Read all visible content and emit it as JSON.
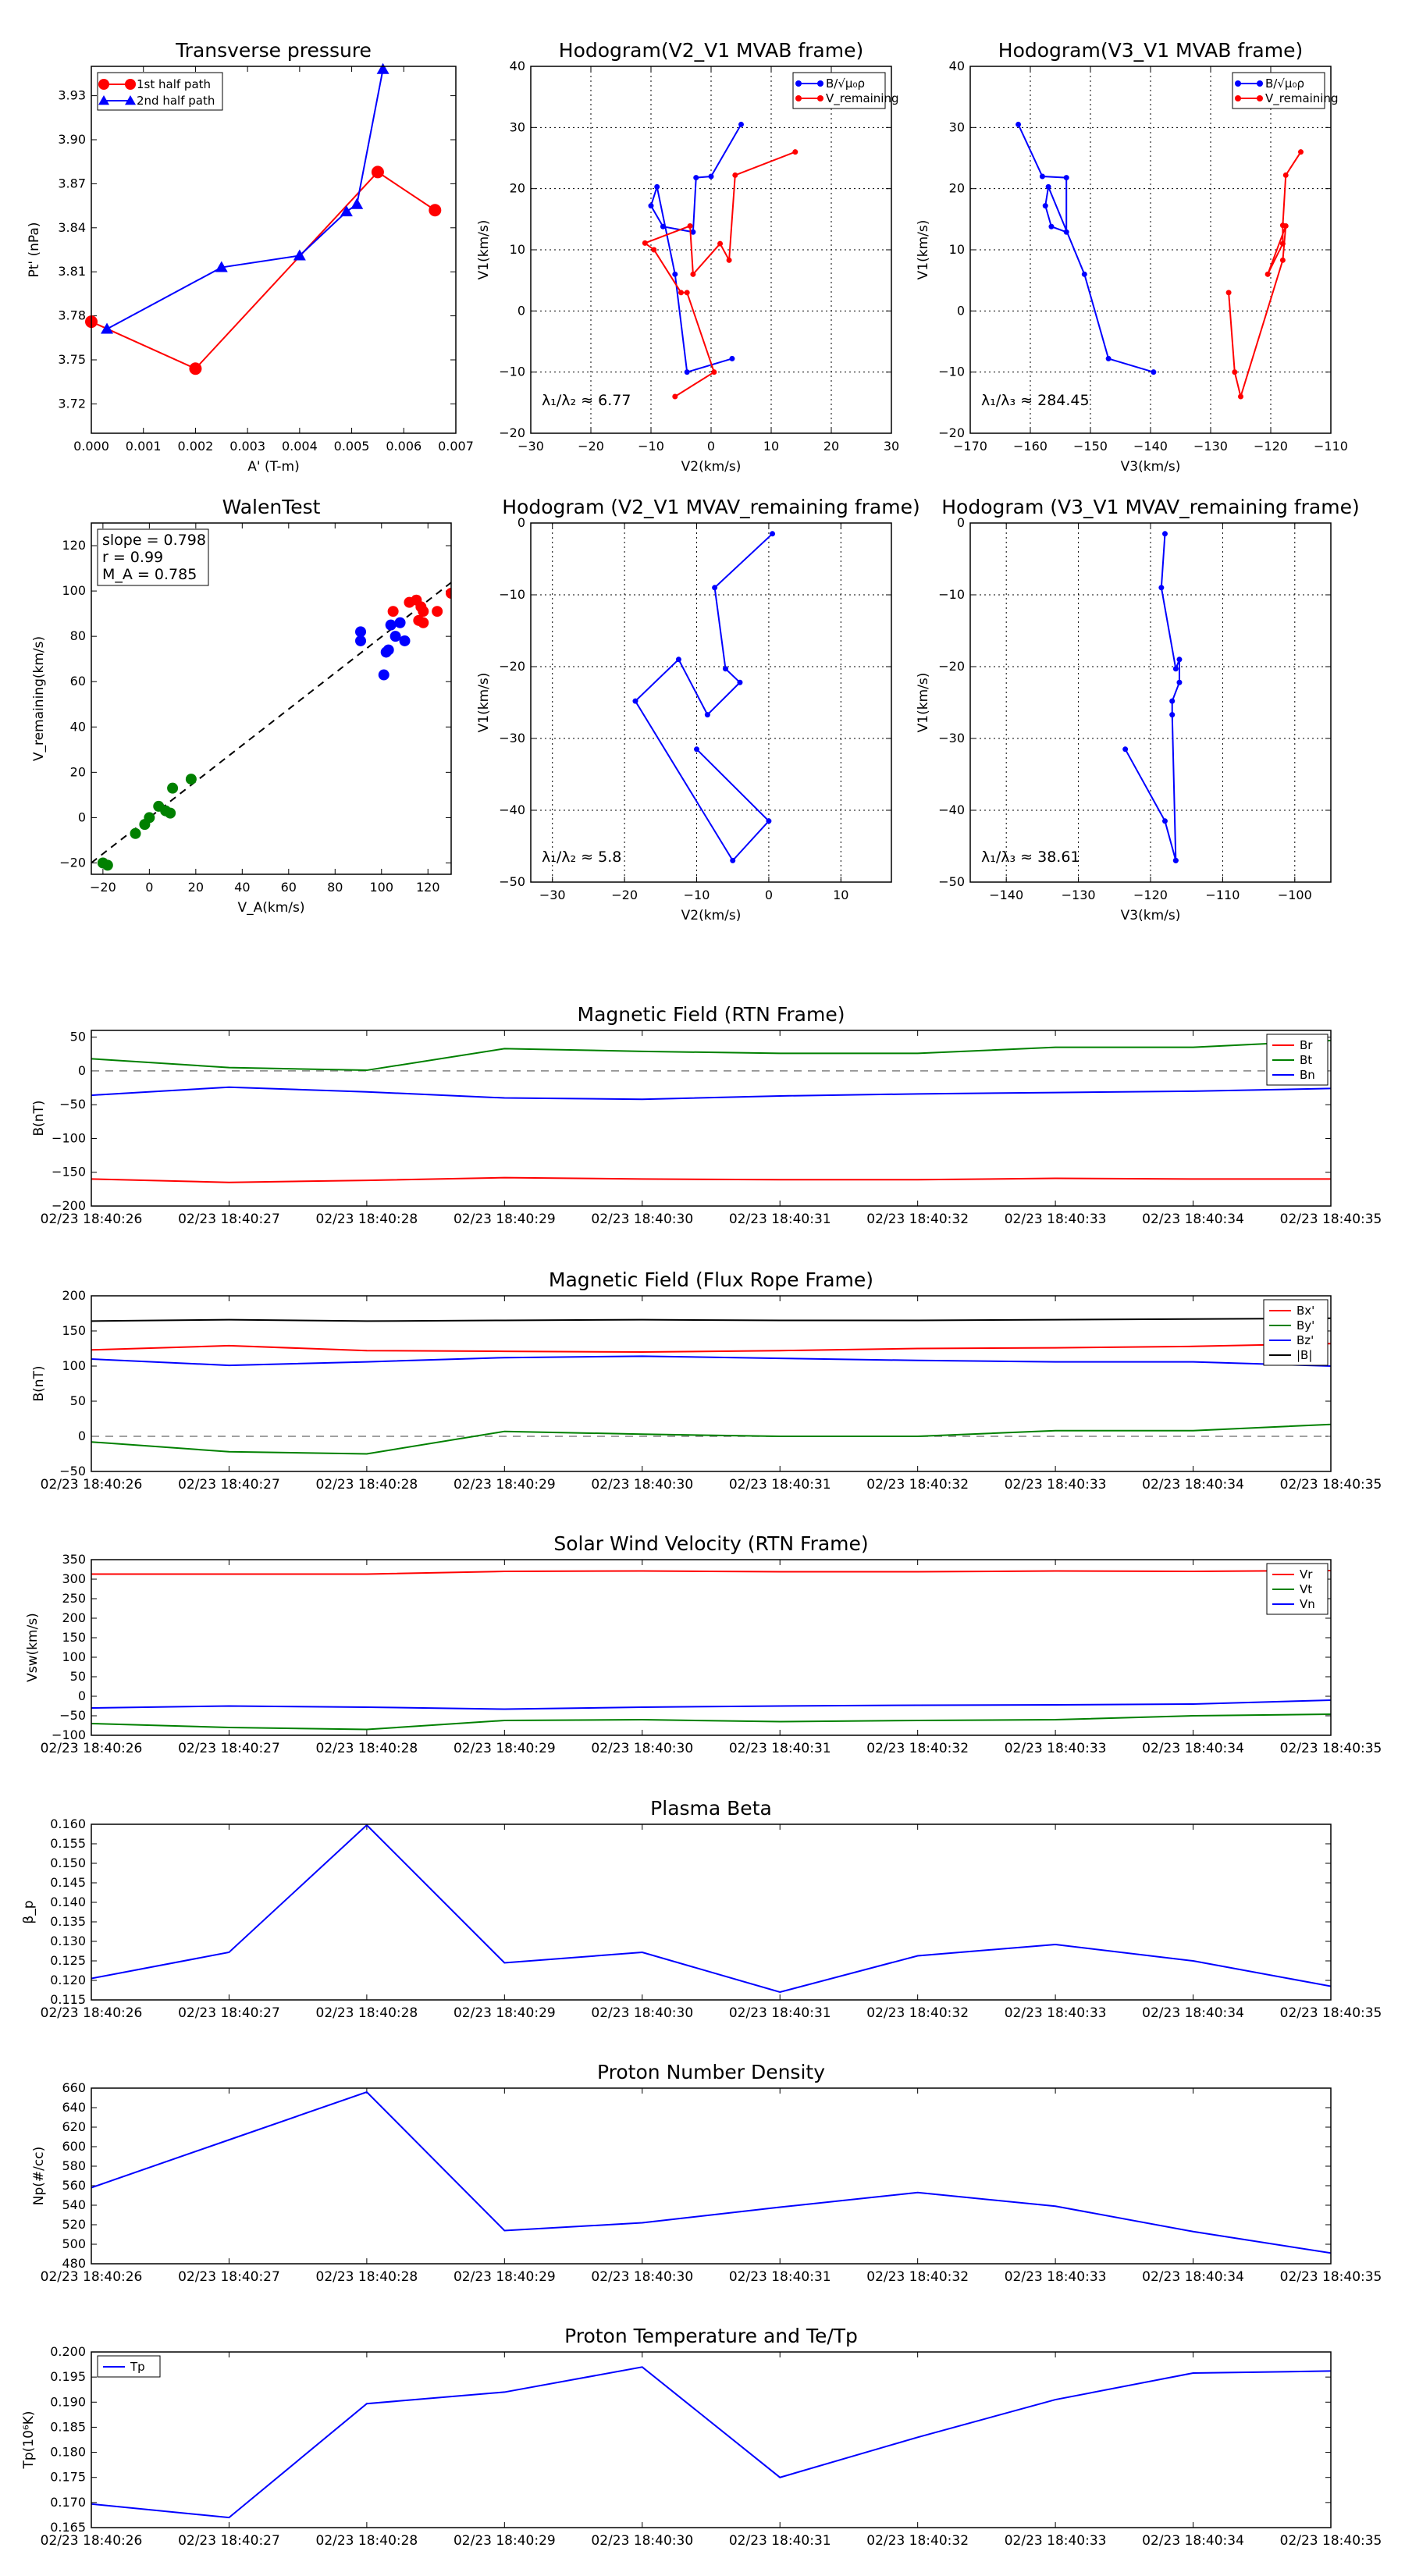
{
  "colors": {
    "red": "#ff0000",
    "green": "#008000",
    "blue": "#0000ff",
    "black": "#000000",
    "grid": "#000000",
    "dash": "#808080"
  },
  "panels": {
    "transverse": {
      "title": "Transverse pressure",
      "xlabel": "A' (T-m)",
      "ylabel": "Pt' (nPa)",
      "xlim": [
        0,
        0.007
      ],
      "ylim": [
        3.7,
        3.95
      ],
      "xticks": [
        "0.000",
        "0.001",
        "0.002",
        "0.003",
        "0.004",
        "0.005",
        "0.006",
        "0.007"
      ],
      "yticks": [
        "3.72",
        "3.75",
        "3.78",
        "3.81",
        "3.84",
        "3.87",
        "3.90",
        "3.93"
      ]
    },
    "hodo1": {
      "title": "Hodogram(V2_V1 MVAB frame)",
      "xlabel": "V2(km/s)",
      "ylabel": "V1(km/s)",
      "xticks": [
        "−30",
        "−20",
        "−10",
        "0",
        "10",
        "20",
        "30"
      ],
      "yticks": [
        "−20",
        "−10",
        "0",
        "10",
        "20",
        "30",
        "40"
      ],
      "legend": [
        "B/√μ₀ρ",
        "V_remaining"
      ],
      "annotation": "λ₁/λ₂ ≈ 6.77"
    },
    "hodo2": {
      "title": "Hodogram(V3_V1 MVAB frame)",
      "xlabel": "V3(km/s)",
      "ylabel": "V1(km/s)",
      "xticks": [
        "−170",
        "−160",
        "−150",
        "−140",
        "−130",
        "−120",
        "−110"
      ],
      "yticks": [
        "−20",
        "−10",
        "0",
        "10",
        "20",
        "30",
        "40"
      ],
      "legend": [
        "B/√μ₀ρ",
        "V_remaining"
      ],
      "annotation": "λ₁/λ₃ ≈ 284.45"
    },
    "walen": {
      "title": "WalenTest",
      "xlabel": "V_A(km/s)",
      "ylabel": "V_remaining(km/s)",
      "xticks": [
        "−20",
        "0",
        "20",
        "40",
        "60",
        "80",
        "100",
        "120"
      ],
      "yticks": [
        "−20",
        "0",
        "20",
        "40",
        "60",
        "80",
        "100",
        "120"
      ],
      "stats": [
        "slope = 0.798",
        "r = 0.99",
        "M_A = 0.785"
      ]
    },
    "hodo3": {
      "title": "Hodogram (V2_V1 MVAV_remaining frame)",
      "xlabel": "V2(km/s)",
      "ylabel": "V1(km/s)",
      "xticks": [
        "−30",
        "−20",
        "−10",
        "0",
        "10"
      ],
      "yticks": [
        "−50",
        "−40",
        "−30",
        "−20",
        "−10",
        "0"
      ],
      "annotation": "λ₁/λ₂ ≈ 5.8"
    },
    "hodo4": {
      "title": "Hodogram (V3_V1 MVAV_remaining frame)",
      "xlabel": "V3(km/s)",
      "ylabel": "V1(km/s)",
      "xticks": [
        "−140",
        "−130",
        "−120",
        "−110",
        "−100"
      ],
      "yticks": [
        "−50",
        "−40",
        "−30",
        "−20",
        "−10",
        "0"
      ],
      "annotation": "λ₁/λ₃ ≈ 38.61"
    },
    "time_ticks": [
      "02/23 18:40:26",
      "02/23 18:40:27",
      "02/23 18:40:28",
      "02/23 18:40:29",
      "02/23 18:40:30",
      "02/23 18:40:31",
      "02/23 18:40:32",
      "02/23 18:40:33",
      "02/23 18:40:34",
      "02/23 18:40:35"
    ],
    "ts1": {
      "title": "Magnetic Field (RTN Frame)",
      "ylabel": "B(nT)",
      "yticks": [
        "−200",
        "−150",
        "−100",
        "−50",
        "0",
        "50"
      ],
      "legend": [
        "Br",
        "Bt",
        "Bn"
      ]
    },
    "ts2": {
      "title": "Magnetic Field (Flux Rope Frame)",
      "ylabel": "B(nT)",
      "yticks": [
        "−50",
        "0",
        "50",
        "100",
        "150",
        "200"
      ],
      "legend": [
        "Bx'",
        "By'",
        "Bz'",
        "|B|"
      ]
    },
    "ts3": {
      "title": "Solar Wind Velocity (RTN Frame)",
      "ylabel": "Vsw(km/s)",
      "yticks": [
        "−100",
        "−50",
        "0",
        "50",
        "100",
        "150",
        "200",
        "250",
        "300",
        "350"
      ],
      "legend": [
        "Vr",
        "Vt",
        "Vn"
      ]
    },
    "ts4": {
      "title": "Plasma Beta",
      "ylabel": "β_p",
      "yticks": [
        "0.115",
        "0.120",
        "0.125",
        "0.130",
        "0.135",
        "0.140",
        "0.145",
        "0.150",
        "0.155",
        "0.160"
      ]
    },
    "ts5": {
      "title": "Proton Number Density",
      "ylabel": "Np(#/cc)",
      "yticks": [
        "480",
        "500",
        "520",
        "540",
        "560",
        "580",
        "600",
        "620",
        "640",
        "660"
      ]
    },
    "ts6": {
      "title": "Proton Temperature and Te/Tp",
      "ylabel": "Tp(10⁶K)",
      "yticks": [
        "0.165",
        "0.170",
        "0.175",
        "0.180",
        "0.185",
        "0.190",
        "0.195",
        "0.200"
      ],
      "legend": [
        "Tp"
      ]
    }
  },
  "chart_data": [
    {
      "type": "scatter",
      "title": "Transverse pressure",
      "xlabel": "A' (T-m)",
      "ylabel": "Pt' (nPa)",
      "xlim": [
        0,
        0.007
      ],
      "ylim": [
        3.7,
        3.95
      ],
      "grid": false,
      "legend_position": "top-left",
      "series": [
        {
          "name": "1st half path",
          "x": [
            0.0066,
            0.0055,
            0.002,
            0.0
          ],
          "y": [
            3.852,
            3.878,
            3.744,
            3.776
          ]
        },
        {
          "name": "2nd half path",
          "x": [
            0.0056,
            0.0051,
            0.0049,
            0.004,
            0.0025,
            0.0003
          ],
          "y": [
            3.948,
            3.856,
            3.851,
            3.821,
            3.813,
            3.771
          ]
        }
      ]
    },
    {
      "type": "line",
      "title": "Hodogram(V2_V1 MVAB frame)",
      "xlabel": "V2(km/s)",
      "ylabel": "V1(km/s)",
      "xlim": [
        -30,
        30
      ],
      "ylim": [
        -20,
        40
      ],
      "grid": true,
      "legend_position": "top-right",
      "series": [
        {
          "name": "B/√μ₀ρ",
          "x": [
            5,
            0,
            -2.5,
            -3,
            -8,
            -10,
            -9,
            -6,
            -4,
            3.5
          ],
          "y": [
            30.5,
            22,
            21.8,
            12.9,
            13.8,
            17.2,
            20.3,
            6,
            -10,
            -7.8
          ]
        },
        {
          "name": "V_remaining",
          "x": [
            14,
            4,
            3,
            1.5,
            -3,
            -3.5,
            -11,
            -9.5,
            -5,
            -4,
            0.5,
            -6
          ],
          "y": [
            26,
            22.2,
            8.3,
            11,
            6,
            13.9,
            11.1,
            10,
            3,
            3,
            -10,
            -14
          ]
        }
      ]
    },
    {
      "type": "line",
      "title": "Hodogram(V3_V1 MVAB frame)",
      "xlabel": "V3(km/s)",
      "ylabel": "V1(km/s)",
      "xlim": [
        -170,
        -110
      ],
      "ylim": [
        -20,
        40
      ],
      "grid": true,
      "legend_position": "top-right",
      "series": [
        {
          "name": "B/√μ₀ρ",
          "x": [
            -162,
            -158,
            -154,
            -154,
            -156.5,
            -157.5,
            -157,
            -151,
            -147,
            -139.5
          ],
          "y": [
            30.5,
            22,
            21.8,
            12.9,
            13.8,
            17.2,
            20.3,
            6,
            -7.8,
            -10
          ]
        },
        {
          "name": "V_remaining",
          "x": [
            -115,
            -117.5,
            -118,
            -118,
            -120.5,
            -117.5,
            -118,
            -125,
            -126,
            -127
          ],
          "y": [
            26,
            22.2,
            14,
            11,
            6,
            13.9,
            8.3,
            -14,
            -10,
            3
          ]
        }
      ]
    },
    {
      "type": "scatter",
      "title": "WalenTest",
      "xlabel": "V_A(km/s)",
      "ylabel": "V_remaining(km/s)",
      "xlim": [
        -25,
        130
      ],
      "ylim": [
        -25,
        130
      ],
      "grid": false,
      "fit": {
        "slope": 0.798,
        "r": 0.99,
        "M_A": 0.785
      },
      "series": [
        {
          "name": "",
          "color": "red",
          "x": [
            105,
            112,
            115,
            117,
            118,
            116,
            118,
            124,
            130
          ],
          "y": [
            91,
            95,
            96,
            93,
            91,
            87,
            86,
            91,
            99
          ]
        },
        {
          "name": "",
          "color": "blue",
          "x": [
            91,
            91,
            101,
            102,
            103,
            104,
            106,
            108,
            110
          ],
          "y": [
            82,
            78,
            63,
            73,
            74,
            85,
            80,
            86,
            78
          ]
        },
        {
          "name": "",
          "color": "green",
          "x": [
            -20,
            -18,
            -6,
            -2,
            0,
            4,
            7,
            9,
            10,
            18
          ],
          "y": [
            -20,
            -21,
            -7,
            -3,
            0,
            5,
            3,
            2,
            13,
            17
          ]
        }
      ]
    },
    {
      "type": "line",
      "title": "Hodogram (V2_V1 MVAV_remaining frame)",
      "xlabel": "V2(km/s)",
      "ylabel": "V1(km/s)",
      "xlim": [
        -33,
        17
      ],
      "ylim": [
        -50,
        0
      ],
      "grid": true,
      "series": [
        {
          "name": "",
          "x": [
            0.5,
            -7.5,
            -6,
            -4,
            -8.5,
            -12.5,
            -18.5,
            -5,
            0,
            -10
          ],
          "y": [
            -1.5,
            -9,
            -20.3,
            -22.2,
            -26.7,
            -19,
            -24.8,
            -47,
            -41.5,
            -31.5
          ]
        }
      ]
    },
    {
      "type": "line",
      "title": "Hodogram (V3_V1 MVAV_remaining frame)",
      "xlabel": "V3(km/s)",
      "ylabel": "V1(km/s)",
      "xlim": [
        -145,
        -95
      ],
      "ylim": [
        -50,
        0
      ],
      "grid": true,
      "series": [
        {
          "name": "",
          "x": [
            -118,
            -118.5,
            -116.5,
            -116,
            -116,
            -117,
            -117,
            -116.5,
            -116.5,
            -118,
            -123.5
          ],
          "y": [
            -1.5,
            -9,
            -20.3,
            -19,
            -22.2,
            -24.8,
            -26.7,
            -47,
            -47,
            -41.5,
            -31.5
          ]
        }
      ]
    },
    {
      "type": "line",
      "title": "Magnetic Field (RTN Frame)",
      "ylabel": "B(nT)",
      "ylim": [
        -200,
        60
      ],
      "legend_position": "top-right",
      "x": [
        "18:40:26",
        "18:40:27",
        "18:40:28",
        "18:40:29",
        "18:40:30",
        "18:40:31",
        "18:40:32",
        "18:40:33",
        "18:40:34",
        "18:40:35"
      ],
      "series": [
        {
          "name": "Br",
          "values": [
            -160,
            -165,
            -162,
            -158,
            -160,
            -161,
            -161,
            -159,
            -160,
            -160
          ]
        },
        {
          "name": "Bt",
          "values": [
            18,
            5,
            1,
            33,
            29,
            26,
            26,
            35,
            35,
            45
          ]
        },
        {
          "name": "Bn",
          "values": [
            -36,
            -24,
            -31,
            -40,
            -42,
            -37,
            -34,
            -32,
            -30,
            -26
          ]
        }
      ]
    },
    {
      "type": "line",
      "title": "Magnetic Field (Flux Rope Frame)",
      "ylabel": "B(nT)",
      "ylim": [
        -50,
        200
      ],
      "legend_position": "top-right",
      "x": [
        "18:40:26",
        "18:40:27",
        "18:40:28",
        "18:40:29",
        "18:40:30",
        "18:40:31",
        "18:40:32",
        "18:40:33",
        "18:40:34",
        "18:40:35"
      ],
      "series": [
        {
          "name": "Bx'",
          "values": [
            123,
            129,
            122,
            121,
            120,
            122,
            125,
            126,
            128,
            132
          ]
        },
        {
          "name": "By'",
          "values": [
            -8,
            -22,
            -25,
            7,
            3,
            0,
            0,
            8,
            8,
            17
          ]
        },
        {
          "name": "Bz'",
          "values": [
            110,
            101,
            106,
            112,
            114,
            111,
            108,
            106,
            106,
            100
          ]
        },
        {
          "name": "|B|",
          "values": [
            164,
            166,
            164,
            165,
            166,
            165,
            165,
            166,
            167,
            168
          ]
        }
      ]
    },
    {
      "type": "line",
      "title": "Solar Wind Velocity (RTN Frame)",
      "ylabel": "Vsw(km/s)",
      "ylim": [
        -100,
        350
      ],
      "legend_position": "top-right",
      "x": [
        "18:40:26",
        "18:40:27",
        "18:40:28",
        "18:40:29",
        "18:40:30",
        "18:40:31",
        "18:40:32",
        "18:40:33",
        "18:40:34",
        "18:40:35"
      ],
      "series": [
        {
          "name": "Vr",
          "values": [
            313,
            313,
            313,
            320,
            321,
            319,
            319,
            321,
            320,
            322
          ]
        },
        {
          "name": "Vt",
          "values": [
            -70,
            -80,
            -85,
            -62,
            -60,
            -65,
            -62,
            -60,
            -50,
            -46
          ]
        },
        {
          "name": "Vn",
          "values": [
            -30,
            -25,
            -28,
            -33,
            -28,
            -25,
            -23,
            -22,
            -20,
            -10
          ]
        }
      ]
    },
    {
      "type": "line",
      "title": "Plasma Beta",
      "ylabel": "β_p",
      "ylim": [
        0.115,
        0.16
      ],
      "x": [
        "18:40:26",
        "18:40:27",
        "18:40:28",
        "18:40:29",
        "18:40:30",
        "18:40:31",
        "18:40:32",
        "18:40:33",
        "18:40:34",
        "18:40:35"
      ],
      "series": [
        {
          "name": "",
          "values": [
            0.1205,
            0.1272,
            0.1598,
            0.1245,
            0.1272,
            0.117,
            0.1263,
            0.1292,
            0.125,
            0.1185
          ]
        }
      ]
    },
    {
      "type": "line",
      "title": "Proton Number Density",
      "ylabel": "Np(#/cc)",
      "ylim": [
        480,
        660
      ],
      "x": [
        "18:40:26",
        "18:40:27",
        "18:40:28",
        "18:40:29",
        "18:40:30",
        "18:40:31",
        "18:40:32",
        "18:40:33",
        "18:40:34",
        "18:40:35"
      ],
      "series": [
        {
          "name": "",
          "values": [
            558,
            607,
            656,
            514,
            522,
            538,
            553,
            539,
            513,
            491
          ]
        }
      ]
    },
    {
      "type": "line",
      "title": "Proton Temperature and Te/Tp",
      "ylabel": "Tp(10⁶K)",
      "ylim": [
        0.165,
        0.2
      ],
      "legend_position": "top-left",
      "x": [
        "18:40:26",
        "18:40:27",
        "18:40:28",
        "18:40:29",
        "18:40:30",
        "18:40:31",
        "18:40:32",
        "18:40:33",
        "18:40:34",
        "18:40:35"
      ],
      "series": [
        {
          "name": "Tp",
          "values": [
            0.1697,
            0.167,
            0.1897,
            0.192,
            0.197,
            0.175,
            0.183,
            0.1905,
            0.1958,
            0.1962
          ]
        }
      ]
    }
  ]
}
